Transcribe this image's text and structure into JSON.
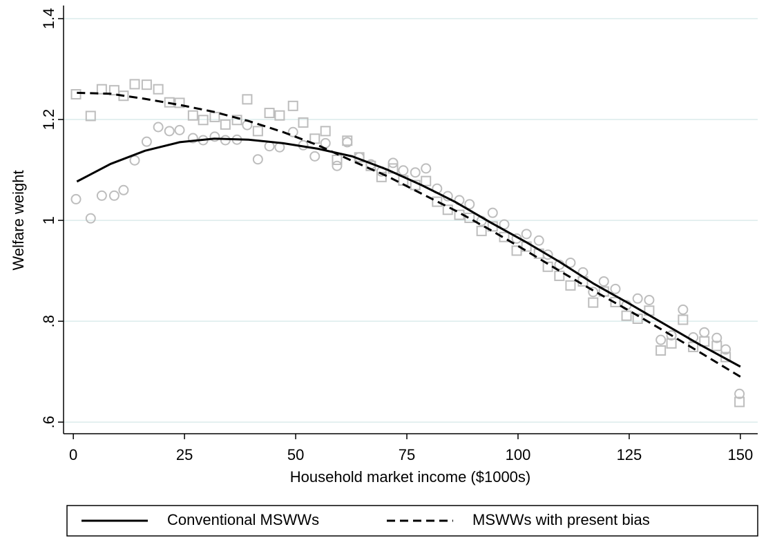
{
  "chart_data": {
    "type": "scatter",
    "xlabel": "Household market income ($1000s)",
    "ylabel": "Welfare weight",
    "xlim": [
      -2.2,
      153.9
    ],
    "ylim": [
      0.577,
      1.426
    ],
    "xticks": [
      0,
      25,
      50,
      75,
      100,
      125,
      150
    ],
    "yticks": [
      {
        "value": 0.6,
        "label": ".6"
      },
      {
        "value": 0.8,
        "label": ".8"
      },
      1,
      1.2,
      1.4
    ],
    "grid": true,
    "legend": "bottom",
    "series": [
      {
        "type": "scatter",
        "marker": "circle",
        "color": "#bdbdbd",
        "x": [
          0.6,
          3.9,
          6.4,
          9.2,
          11.3,
          13.8,
          16.5,
          19.1,
          21.6,
          23.9,
          26.9,
          29.2,
          31.8,
          34.2,
          36.8,
          39.1,
          41.5,
          44.1,
          46.4,
          49.4,
          51.7,
          54.3,
          56.7,
          59.3,
          61.6,
          64.3,
          66.9,
          69.3,
          71.9,
          74.2,
          76.9,
          79.3,
          81.8,
          84.2,
          86.8,
          89.1,
          91.8,
          94.3,
          96.9,
          99.7,
          101.9,
          104.7,
          106.7,
          109.3,
          111.8,
          114.6,
          116.9,
          119.3,
          121.9,
          124.4,
          126.9,
          129.5,
          132.1,
          134.5,
          137.1,
          139.4,
          141.9,
          144.7,
          146.7,
          149.8
        ],
        "values": [
          1.042,
          1.004,
          1.049,
          1.049,
          1.06,
          1.119,
          1.156,
          1.185,
          1.177,
          1.179,
          1.163,
          1.159,
          1.166,
          1.159,
          1.16,
          1.189,
          1.121,
          1.147,
          1.145,
          1.175,
          1.149,
          1.127,
          1.153,
          1.108,
          1.155,
          1.125,
          1.111,
          1.097,
          1.114,
          1.099,
          1.095,
          1.103,
          1.063,
          1.048,
          1.04,
          1.032,
          0.999,
          1.015,
          0.992,
          0.964,
          0.973,
          0.96,
          0.932,
          0.912,
          0.916,
          0.897,
          0.858,
          0.879,
          0.864,
          0.832,
          0.845,
          0.842,
          0.763,
          0.772,
          0.823,
          0.768,
          0.778,
          0.767,
          0.744,
          0.656
        ]
      },
      {
        "type": "scatter",
        "marker": "square",
        "color": "#bdbdbd",
        "x": [
          0.6,
          3.9,
          6.4,
          9.2,
          11.3,
          13.8,
          16.5,
          19.1,
          21.6,
          23.9,
          26.9,
          29.2,
          31.8,
          34.2,
          36.8,
          39.1,
          41.5,
          44.1,
          46.4,
          49.4,
          51.7,
          54.3,
          56.7,
          59.3,
          61.6,
          64.3,
          66.9,
          69.3,
          71.9,
          74.2,
          76.9,
          79.3,
          81.8,
          84.2,
          86.8,
          89.1,
          91.8,
          94.3,
          96.9,
          99.7,
          101.9,
          104.7,
          106.7,
          109.3,
          111.8,
          114.6,
          116.9,
          119.3,
          121.9,
          124.4,
          126.9,
          129.5,
          132.1,
          134.5,
          137.1,
          139.4,
          141.9,
          144.7,
          146.7,
          149.8
        ],
        "values": [
          1.25,
          1.207,
          1.26,
          1.258,
          1.247,
          1.27,
          1.269,
          1.26,
          1.234,
          1.233,
          1.208,
          1.199,
          1.205,
          1.19,
          1.199,
          1.24,
          1.177,
          1.213,
          1.208,
          1.227,
          1.194,
          1.162,
          1.177,
          1.12,
          1.158,
          1.125,
          1.108,
          1.086,
          1.103,
          1.079,
          1.07,
          1.078,
          1.037,
          1.021,
          1.011,
          1.005,
          0.979,
          0.988,
          0.967,
          0.94,
          0.948,
          0.934,
          0.908,
          0.89,
          0.871,
          0.879,
          0.837,
          0.859,
          0.838,
          0.811,
          0.805,
          0.821,
          0.742,
          0.756,
          0.803,
          0.749,
          0.76,
          0.751,
          0.729,
          0.64
        ]
      },
      {
        "type": "line",
        "name": "Conventional MSWWs",
        "color": "#000000",
        "dash": false,
        "x": [
          0.8,
          8.4,
          16.1,
          23.9,
          31.7,
          39.4,
          47.2,
          55,
          62.7,
          70.5,
          78.3,
          86,
          93.8,
          101.6,
          109.3,
          117.1,
          124.8,
          132.6,
          140.4,
          150
        ],
        "values": [
          1.077,
          1.112,
          1.138,
          1.155,
          1.162,
          1.16,
          1.153,
          1.142,
          1.127,
          1.101,
          1.07,
          1.036,
          0.996,
          0.958,
          0.918,
          0.874,
          0.836,
          0.796,
          0.756,
          0.71
        ]
      },
      {
        "type": "line",
        "name": "MSWWs with present bias",
        "color": "#000000",
        "dash": true,
        "x": [
          0.8,
          8.4,
          16.1,
          23.9,
          31.7,
          39.4,
          47.2,
          55,
          62.7,
          70.5,
          78.3,
          86,
          93.8,
          101.6,
          109.3,
          117.1,
          124.8,
          132.6,
          140.4,
          150
        ],
        "values": [
          1.253,
          1.251,
          1.241,
          1.229,
          1.215,
          1.197,
          1.175,
          1.149,
          1.118,
          1.088,
          1.053,
          1.019,
          0.981,
          0.941,
          0.9,
          0.86,
          0.822,
          0.782,
          0.741,
          0.69
        ]
      }
    ]
  }
}
